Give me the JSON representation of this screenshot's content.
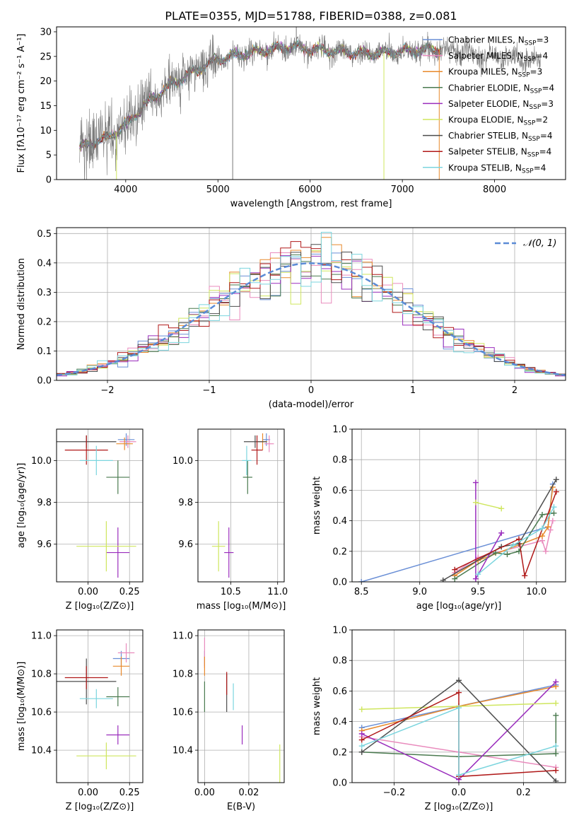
{
  "title": "PLATE=0355, MJD=51788, FIBERID=0388, z=0.081",
  "colors": {
    "Chabrier MILES": "#6a8fd6",
    "Salpeter MILES": "#e98bbd",
    "Kroupa MILES": "#e8892b",
    "Chabrier ELODIE": "#4a7a4f",
    "Salpeter ELODIE": "#9a2dbd",
    "Kroupa ELODIE": "#cfe65e",
    "Chabrier STELIB": "#4d4d4d",
    "Salpeter STELIB": "#b01919",
    "Kroupa STELIB": "#7bd5de"
  },
  "legend_spectrum": [
    {
      "name": "Chabrier MILES",
      "nssp": "3",
      "color": "#6a8fd6"
    },
    {
      "name": "Salpeter MILES",
      "nssp": "4",
      "color": "#e98bbd"
    },
    {
      "name": "Kroupa MILES",
      "nssp": "3",
      "color": "#e8892b"
    },
    {
      "name": "Chabrier ELODIE",
      "nssp": "4",
      "color": "#4a7a4f"
    },
    {
      "name": "Salpeter ELODIE",
      "nssp": "3",
      "color": "#9a2dbd"
    },
    {
      "name": "Kroupa ELODIE",
      "nssp": "2",
      "color": "#cfe65e"
    },
    {
      "name": "Chabrier STELIB",
      "nssp": "4",
      "color": "#4d4d4d"
    },
    {
      "name": "Salpeter STELIB",
      "nssp": "4",
      "color": "#b01919"
    },
    {
      "name": "Kroupa STELIB",
      "nssp": "4",
      "color": "#7bd5de"
    }
  ],
  "chart_data": [
    {
      "id": "spectrum",
      "type": "line",
      "xlabel": "wavelength [Angstrom, rest frame]",
      "ylabel": "Flux [fλ10⁻¹⁷ erg cm⁻² s⁻¹ A⁻¹]",
      "xlim": [
        3250,
        8770
      ],
      "ylim": [
        0,
        31
      ],
      "xticks": [
        4000,
        5000,
        6000,
        7000,
        8000
      ],
      "yticks": [
        0,
        5,
        10,
        15,
        20,
        25,
        30
      ],
      "continuum": {
        "x": [
          3500,
          3800,
          4000,
          4200,
          4500,
          4800,
          5000,
          5300,
          5600,
          5800,
          6000,
          6300,
          6600,
          7000,
          7400,
          7800,
          8000,
          8300,
          8500
        ],
        "y": [
          6.5,
          8.5,
          11,
          15,
          19.5,
          22.5,
          24.5,
          25.5,
          26.5,
          27,
          26.5,
          26,
          25.5,
          26,
          26.5,
          25.5,
          25,
          24.5,
          24
        ]
      },
      "data_start": 3500,
      "data_end": 8500,
      "model_end": 7420
    },
    {
      "id": "residual_hist",
      "type": "histogram",
      "xlabel": "(data-model)/error",
      "ylabel": "Normed distribution",
      "xlim": [
        -2.5,
        2.5
      ],
      "ylim": [
        0,
        0.52
      ],
      "xticks": [
        -2,
        -1,
        0,
        1,
        2
      ],
      "yticks": [
        0,
        0.1,
        0.2,
        0.3,
        0.4,
        0.5
      ],
      "legend": "𝒩(0, 1)",
      "reference": "normal(0,1)"
    },
    {
      "id": "age_vs_Z",
      "type": "errorbar",
      "xlabel": "Z [log₁₀(Z/Z⊙)]",
      "ylabel": "age  [log₁₀(age/yr)]",
      "xlim": [
        -0.19,
        0.33
      ],
      "ylim": [
        9.42,
        10.15
      ],
      "xticks": [
        0,
        0.25
      ],
      "yticks": [
        9.6,
        9.8,
        10.0
      ],
      "points": [
        {
          "model": "Chabrier MILES",
          "x": 0.23,
          "y": 10.1,
          "xerr": 0.05,
          "yerr": 0.03
        },
        {
          "model": "Salpeter MILES",
          "x": 0.24,
          "y": 10.09,
          "xerr": 0.05,
          "yerr": 0.03
        },
        {
          "model": "Kroupa MILES",
          "x": 0.22,
          "y": 10.08,
          "xerr": 0.05,
          "yerr": 0.03
        },
        {
          "model": "Chabrier ELODIE",
          "x": 0.18,
          "y": 9.92,
          "xerr": 0.07,
          "yerr": 0.08
        },
        {
          "model": "Salpeter ELODIE",
          "x": 0.18,
          "y": 9.56,
          "xerr": 0.07,
          "yerr": 0.12
        },
        {
          "model": "Kroupa ELODIE",
          "x": 0.11,
          "y": 9.59,
          "xerr": 0.18,
          "yerr": 0.12
        },
        {
          "model": "Chabrier STELIB",
          "x": -0.01,
          "y": 10.09,
          "xerr": 0.18,
          "yerr": 0.03
        },
        {
          "model": "Salpeter STELIB",
          "x": -0.01,
          "y": 10.05,
          "xerr": 0.13,
          "yerr": 0.07
        },
        {
          "model": "Kroupa STELIB",
          "x": 0.05,
          "y": 10.0,
          "xerr": 0.1,
          "yerr": 0.07
        }
      ]
    },
    {
      "id": "age_vs_mass",
      "type": "errorbar",
      "xlabel": "mass [log₁₀(M/M⊙)]",
      "ylabel": "",
      "xlim": [
        10.15,
        11.07
      ],
      "ylim": [
        9.42,
        10.15
      ],
      "xticks": [
        10.5,
        11.0
      ],
      "yticks": [
        9.6,
        9.8,
        10.0
      ],
      "points": [
        {
          "model": "Chabrier MILES",
          "x": 10.88,
          "y": 10.1,
          "xerr": 0.04,
          "yerr": 0.03
        },
        {
          "model": "Salpeter MILES",
          "x": 10.91,
          "y": 10.08,
          "xerr": 0.05,
          "yerr": 0.04
        },
        {
          "model": "Kroupa MILES",
          "x": 10.84,
          "y": 10.09,
          "xerr": 0.05,
          "yerr": 0.04
        },
        {
          "model": "Chabrier ELODIE",
          "x": 10.68,
          "y": 9.92,
          "xerr": 0.05,
          "yerr": 0.08
        },
        {
          "model": "Salpeter ELODIE",
          "x": 10.48,
          "y": 9.56,
          "xerr": 0.05,
          "yerr": 0.12
        },
        {
          "model": "Kroupa ELODIE",
          "x": 10.37,
          "y": 9.59,
          "xerr": 0.07,
          "yerr": 0.12
        },
        {
          "model": "Chabrier STELIB",
          "x": 10.76,
          "y": 10.09,
          "xerr": 0.12,
          "yerr": 0.03
        },
        {
          "model": "Salpeter STELIB",
          "x": 10.78,
          "y": 10.05,
          "xerr": 0.06,
          "yerr": 0.07
        },
        {
          "model": "Kroupa STELIB",
          "x": 10.67,
          "y": 10.0,
          "xerr": 0.05,
          "yerr": 0.07
        }
      ]
    },
    {
      "id": "weight_vs_age",
      "type": "line",
      "xlabel": "age  [log₁₀(age/yr)]",
      "ylabel": "mass weight",
      "xlim": [
        8.42,
        10.25
      ],
      "ylim": [
        0,
        1
      ],
      "xticks": [
        8.5,
        9.0,
        9.5,
        10.0
      ],
      "yticks": [
        0,
        0.2,
        0.4,
        0.6,
        0.8,
        1.0
      ],
      "series": [
        {
          "model": "Chabrier MILES",
          "x": [
            8.5,
            10.1,
            10.14
          ],
          "y": [
            0.0,
            0.36,
            0.64
          ]
        },
        {
          "model": "Salpeter MILES",
          "x": [
            9.3,
            9.5,
            10.05,
            10.08,
            10.12,
            10.14
          ],
          "y": [
            0.06,
            0.16,
            0.27,
            0.2,
            0.34,
            0.4
          ]
        },
        {
          "model": "Kroupa MILES",
          "x": [
            9.3,
            9.5,
            10.05,
            10.1,
            10.14
          ],
          "y": [
            0.04,
            0.14,
            0.3,
            0.36,
            0.62
          ]
        },
        {
          "model": "Chabrier ELODIE",
          "x": [
            9.3,
            9.65,
            9.75,
            9.85,
            10.05,
            10.15
          ],
          "y": [
            0.02,
            0.19,
            0.18,
            0.2,
            0.44,
            0.45
          ]
        },
        {
          "model": "Salpeter ELODIE",
          "x": [
            9.48,
            9.48,
            9.7
          ],
          "y": [
            0.65,
            0.02,
            0.32
          ]
        },
        {
          "model": "Kroupa ELODIE",
          "x": [
            9.48,
            9.7
          ],
          "y": [
            0.52,
            0.48
          ]
        },
        {
          "model": "Chabrier STELIB",
          "x": [
            9.2,
            9.7,
            9.85,
            10.17
          ],
          "y": [
            0.01,
            0.23,
            0.25,
            0.67
          ]
        },
        {
          "model": "Salpeter STELIB",
          "x": [
            9.3,
            9.85,
            9.9,
            10.17
          ],
          "y": [
            0.08,
            0.28,
            0.04,
            0.59
          ]
        },
        {
          "model": "Kroupa STELIB",
          "x": [
            9.5,
            9.8,
            10.05,
            10.15
          ],
          "y": [
            0.05,
            0.24,
            0.35,
            0.49
          ]
        }
      ]
    },
    {
      "id": "mass_vs_Z",
      "type": "errorbar",
      "xlabel": "Z [log₁₀(Z/Z⊙)]",
      "ylabel": "mass [log₁₀(M/M⊙)]",
      "xlim": [
        -0.19,
        0.33
      ],
      "ylim": [
        10.23,
        11.03
      ],
      "xticks": [
        0,
        0.25
      ],
      "yticks": [
        10.4,
        10.6,
        10.8,
        11.0
      ],
      "points": [
        {
          "model": "Chabrier MILES",
          "x": 0.2,
          "y": 10.88,
          "xerr": 0.05,
          "yerr": 0.04
        },
        {
          "model": "Salpeter MILES",
          "x": 0.23,
          "y": 10.91,
          "xerr": 0.05,
          "yerr": 0.05
        },
        {
          "model": "Kroupa MILES",
          "x": 0.2,
          "y": 10.84,
          "xerr": 0.05,
          "yerr": 0.05
        },
        {
          "model": "Chabrier ELODIE",
          "x": 0.18,
          "y": 10.68,
          "xerr": 0.07,
          "yerr": 0.05
        },
        {
          "model": "Salpeter ELODIE",
          "x": 0.18,
          "y": 10.48,
          "xerr": 0.07,
          "yerr": 0.05
        },
        {
          "model": "Kroupa ELODIE",
          "x": 0.11,
          "y": 10.37,
          "xerr": 0.18,
          "yerr": 0.07
        },
        {
          "model": "Chabrier STELIB",
          "x": -0.01,
          "y": 10.76,
          "xerr": 0.18,
          "yerr": 0.12
        },
        {
          "model": "Salpeter STELIB",
          "x": -0.01,
          "y": 10.78,
          "xerr": 0.13,
          "yerr": 0.06
        },
        {
          "model": "Kroupa STELIB",
          "x": 0.05,
          "y": 10.67,
          "xerr": 0.1,
          "yerr": 0.05
        }
      ]
    },
    {
      "id": "mass_vs_ebv",
      "type": "errorbar",
      "xlabel": "E(B-V)",
      "ylabel": "",
      "xlim": [
        -0.003,
        0.036
      ],
      "ylim": [
        10.23,
        11.03
      ],
      "xticks": [
        0,
        0.02
      ],
      "yticks": [
        10.4,
        10.6,
        10.8,
        11.0
      ],
      "points": [
        {
          "model": "Chabrier MILES",
          "x": 0.0,
          "y": 10.88,
          "xerr": 0,
          "yerr": 0.04
        },
        {
          "model": "Salpeter MILES",
          "x": 0.0,
          "y": 10.91,
          "xerr": 0,
          "yerr": 0.08
        },
        {
          "model": "Kroupa MILES",
          "x": 0.0,
          "y": 10.84,
          "xerr": 0,
          "yerr": 0.05
        },
        {
          "model": "Chabrier ELODIE",
          "x": 0.0,
          "y": 10.68,
          "xerr": 0,
          "yerr": 0.08
        },
        {
          "model": "Salpeter ELODIE",
          "x": 0.017,
          "y": 10.48,
          "xerr": 0,
          "yerr": 0.05
        },
        {
          "model": "Kroupa ELODIE",
          "x": 0.034,
          "y": 10.33,
          "xerr": 0,
          "yerr": 0.1
        },
        {
          "model": "Chabrier STELIB",
          "x": 0.01,
          "y": 10.7,
          "xerr": 0,
          "yerr": 0.1
        },
        {
          "model": "Salpeter STELIB",
          "x": 0.01,
          "y": 10.75,
          "xerr": 0,
          "yerr": 0.06
        },
        {
          "model": "Kroupa STELIB",
          "x": 0.013,
          "y": 10.68,
          "xerr": 0,
          "yerr": 0.07
        }
      ]
    },
    {
      "id": "weight_vs_Z",
      "type": "line",
      "xlabel": "Z [log₁₀(Z/Z⊙)]",
      "ylabel": "mass weight",
      "xlim": [
        -0.33,
        0.33
      ],
      "ylim": [
        0,
        1
      ],
      "xticks": [
        -0.2,
        0,
        0.2
      ],
      "yticks": [
        0,
        0.2,
        0.4,
        0.6,
        0.8,
        1.0
      ],
      "series": [
        {
          "model": "Chabrier MILES",
          "x": [
            -0.3,
            0,
            0.3
          ],
          "y": [
            0.36,
            0.5,
            0.64
          ]
        },
        {
          "model": "Salpeter MILES",
          "x": [
            -0.3,
            0,
            0.3
          ],
          "y": [
            0.3,
            0.2,
            0.1
          ]
        },
        {
          "model": "Kroupa MILES",
          "x": [
            -0.3,
            0,
            0.3
          ],
          "y": [
            0.34,
            0.5,
            0.63
          ]
        },
        {
          "model": "Chabrier ELODIE",
          "x": [
            -0.3,
            0,
            0.3,
            0.3
          ],
          "y": [
            0.2,
            0.17,
            0.19,
            0.44
          ]
        },
        {
          "model": "Salpeter ELODIE",
          "x": [
            -0.3,
            0,
            0.3
          ],
          "y": [
            0.32,
            0.02,
            0.66
          ]
        },
        {
          "model": "Kroupa ELODIE",
          "x": [
            -0.3,
            0.3
          ],
          "y": [
            0.48,
            0.52
          ]
        },
        {
          "model": "Chabrier STELIB",
          "x": [
            -0.3,
            0,
            0.3
          ],
          "y": [
            0.2,
            0.67,
            0.01
          ]
        },
        {
          "model": "Salpeter STELIB",
          "x": [
            -0.3,
            0,
            0,
            0.3
          ],
          "y": [
            0.28,
            0.59,
            0.04,
            0.08
          ]
        },
        {
          "model": "Kroupa STELIB",
          "x": [
            -0.3,
            0,
            0,
            0.3
          ],
          "y": [
            0.24,
            0.49,
            0.05,
            0.24
          ]
        }
      ]
    }
  ]
}
